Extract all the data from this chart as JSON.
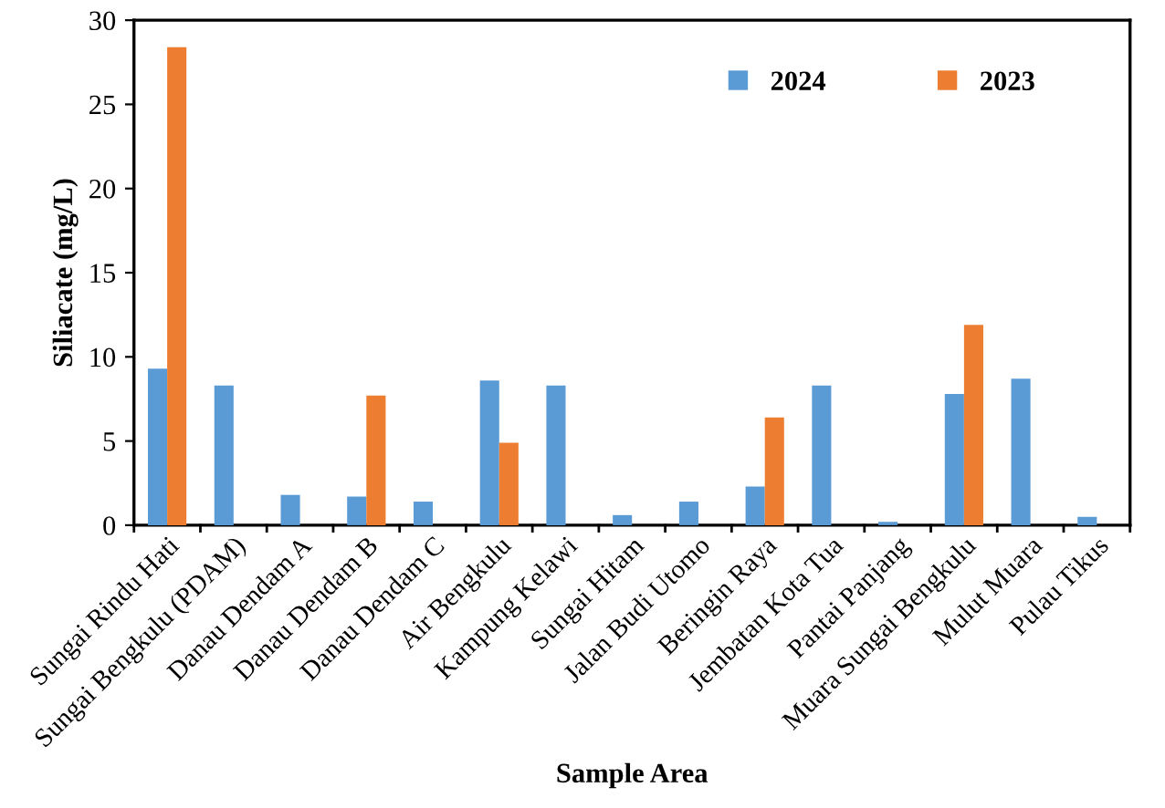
{
  "chart_data": {
    "type": "bar",
    "xlabel": "Sample Area",
    "ylabel": "Siliacate (mg/L)",
    "categories": [
      "Sungai Rindu Hati",
      "Sungai Bengkulu (PDAM)",
      "Danau Dendam A",
      "Danau Dendam B",
      "Danau Dendam C",
      "Air Bengkulu",
      "Kampung Kelawi",
      "Sungai Hitam",
      "Jalan Budi Utomo",
      "Beringin Raya",
      "Jembatan Kota Tua",
      "Pantai Panjang",
      "Muara Sungai Bengkulu",
      "Mulut Muara",
      "Pulau Tikus"
    ],
    "series": [
      {
        "name": "2024",
        "color": "#5b9bd5",
        "values": [
          9.3,
          8.3,
          1.8,
          1.7,
          1.4,
          8.6,
          8.3,
          0.6,
          1.4,
          2.3,
          8.3,
          0.2,
          7.8,
          8.7,
          0.5
        ]
      },
      {
        "name": "2023",
        "color": "#ed7d31",
        "values": [
          28.4,
          null,
          null,
          7.7,
          null,
          4.9,
          null,
          null,
          null,
          6.4,
          null,
          null,
          11.9,
          null,
          null
        ]
      }
    ],
    "ylim": [
      0,
      30
    ],
    "yticks": [
      0,
      5,
      10,
      15,
      20,
      25,
      30
    ],
    "grid": false,
    "legend": "top right"
  }
}
